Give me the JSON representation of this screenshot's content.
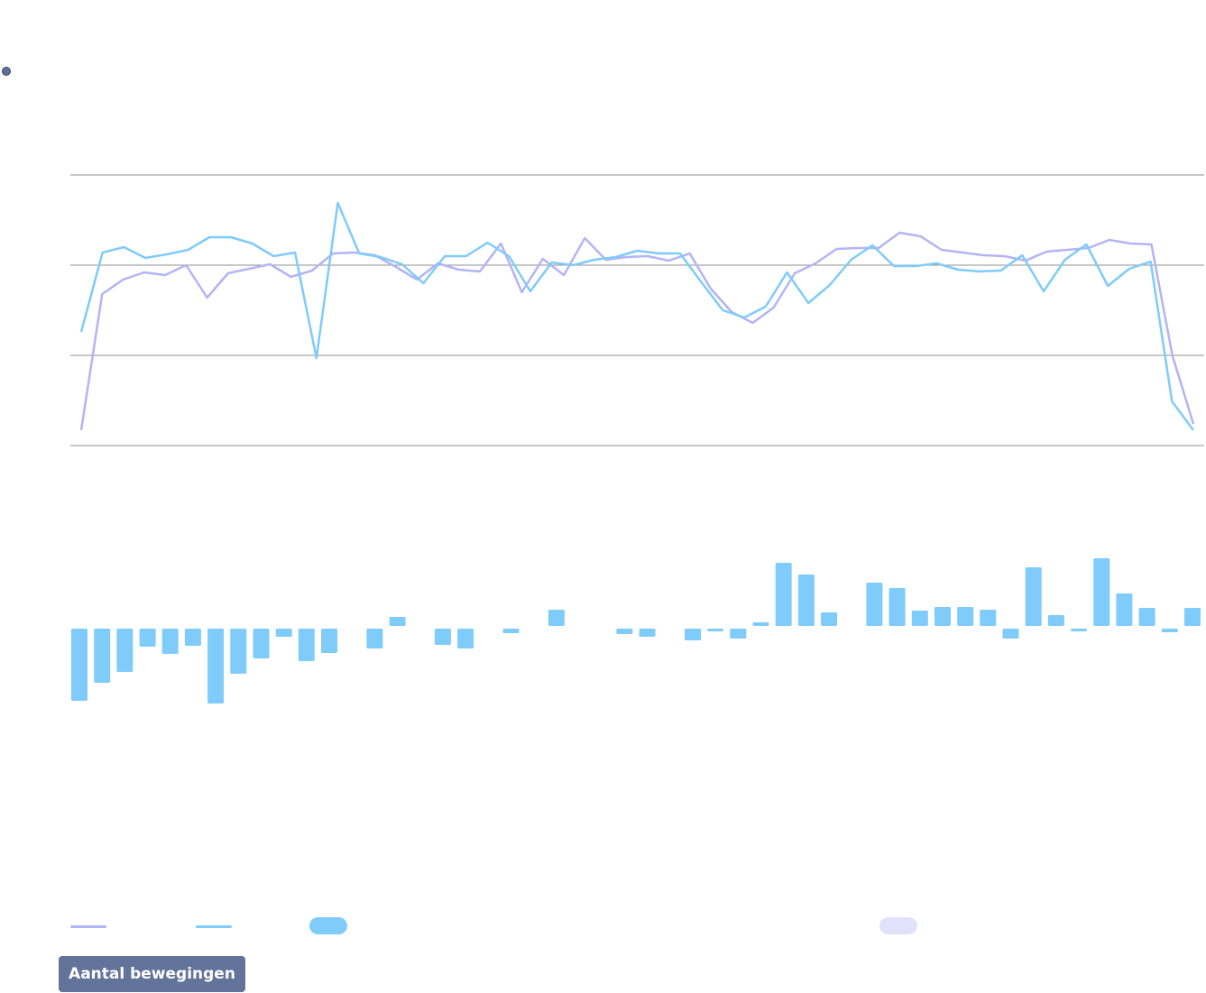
{
  "colors": {
    "series_a": "#b3b4f5",
    "series_b": "#7fcbfa",
    "bars_positive": "#7fcbfa",
    "bars_legend_secondary": "#e0e2fc",
    "grid": "#8f8f8f",
    "button_bg": "#63749a"
  },
  "legend": {
    "items": [
      {
        "label": "",
        "kind": "line",
        "color": "#b3b4f5"
      },
      {
        "label": "",
        "kind": "line",
        "color": "#7fcbfa"
      },
      {
        "label": "",
        "kind": "box",
        "color": "#7fcbfa"
      },
      {
        "label": "",
        "kind": "box",
        "color": "#e0e2fc"
      }
    ]
  },
  "button": {
    "label": "Aantal bewegingen"
  },
  "chart_data": [
    {
      "type": "line",
      "title": "",
      "grid": true,
      "ylim": [
        -20,
        10
      ],
      "y_gridlines": [
        -20,
        -10,
        0,
        10
      ],
      "series": [
        {
          "name": "",
          "color": "#b3b4f5",
          "values": [
            -18.3,
            -3.2,
            -1.6,
            -0.8,
            -1.1,
            0.0,
            -3.6,
            -0.9,
            -0.4,
            0.1,
            -1.3,
            -0.6,
            1.3,
            1.4,
            1.1,
            -0.2,
            -1.6,
            0.2,
            -0.5,
            -0.7,
            2.4,
            -3.0,
            0.7,
            -1.1,
            3.0,
            0.6,
            0.9,
            1.0,
            0.5,
            1.3,
            -2.6,
            -5.2,
            -6.4,
            -4.7,
            -0.9,
            0.2,
            1.8,
            1.9,
            1.9,
            3.6,
            3.2,
            1.7,
            1.4,
            1.1,
            1.0,
            0.5,
            1.5,
            1.7,
            1.9,
            2.8,
            2.4,
            2.3,
            -10.0,
            -17.6
          ]
        },
        {
          "name": "",
          "color": "#7fcbfa",
          "values": [
            -7.4,
            1.4,
            2.0,
            0.8,
            1.2,
            1.7,
            3.1,
            3.1,
            2.4,
            1.0,
            1.4,
            -10.3,
            6.9,
            1.3,
            0.9,
            0.1,
            -2.0,
            1.0,
            1.0,
            2.5,
            1.0,
            -2.9,
            0.3,
            0.0,
            0.6,
            0.9,
            1.6,
            1.3,
            1.3,
            -1.9,
            -5.0,
            -5.8,
            -4.6,
            -0.8,
            -4.2,
            -2.2,
            0.6,
            2.2,
            -0.1,
            -0.1,
            0.2,
            -0.5,
            -0.7,
            -0.6,
            1.1,
            -2.9,
            0.6,
            2.3,
            -2.3,
            -0.4,
            0.4,
            -15.1,
            -18.3
          ]
        }
      ]
    },
    {
      "type": "bar",
      "title": "",
      "ylim": [
        -10,
        10
      ],
      "values": [
        -8.0,
        -6.0,
        -4.8,
        -2.0,
        -2.8,
        -1.9,
        -8.3,
        -5.0,
        -3.3,
        -0.9,
        -3.6,
        -2.7,
        0,
        -2.2,
        1.0,
        0,
        -1.8,
        -2.2,
        0,
        -0.5,
        0,
        1.8,
        0,
        0,
        -0.6,
        -0.9,
        0,
        -1.3,
        -0.3,
        -1.1,
        0.4,
        7.0,
        5.7,
        1.5,
        0,
        4.8,
        4.2,
        1.7,
        2.1,
        2.1,
        1.8,
        -1.1,
        6.5,
        1.2,
        -0.3,
        7.5,
        3.6,
        2.0,
        -0.4,
        2.0
      ]
    }
  ]
}
